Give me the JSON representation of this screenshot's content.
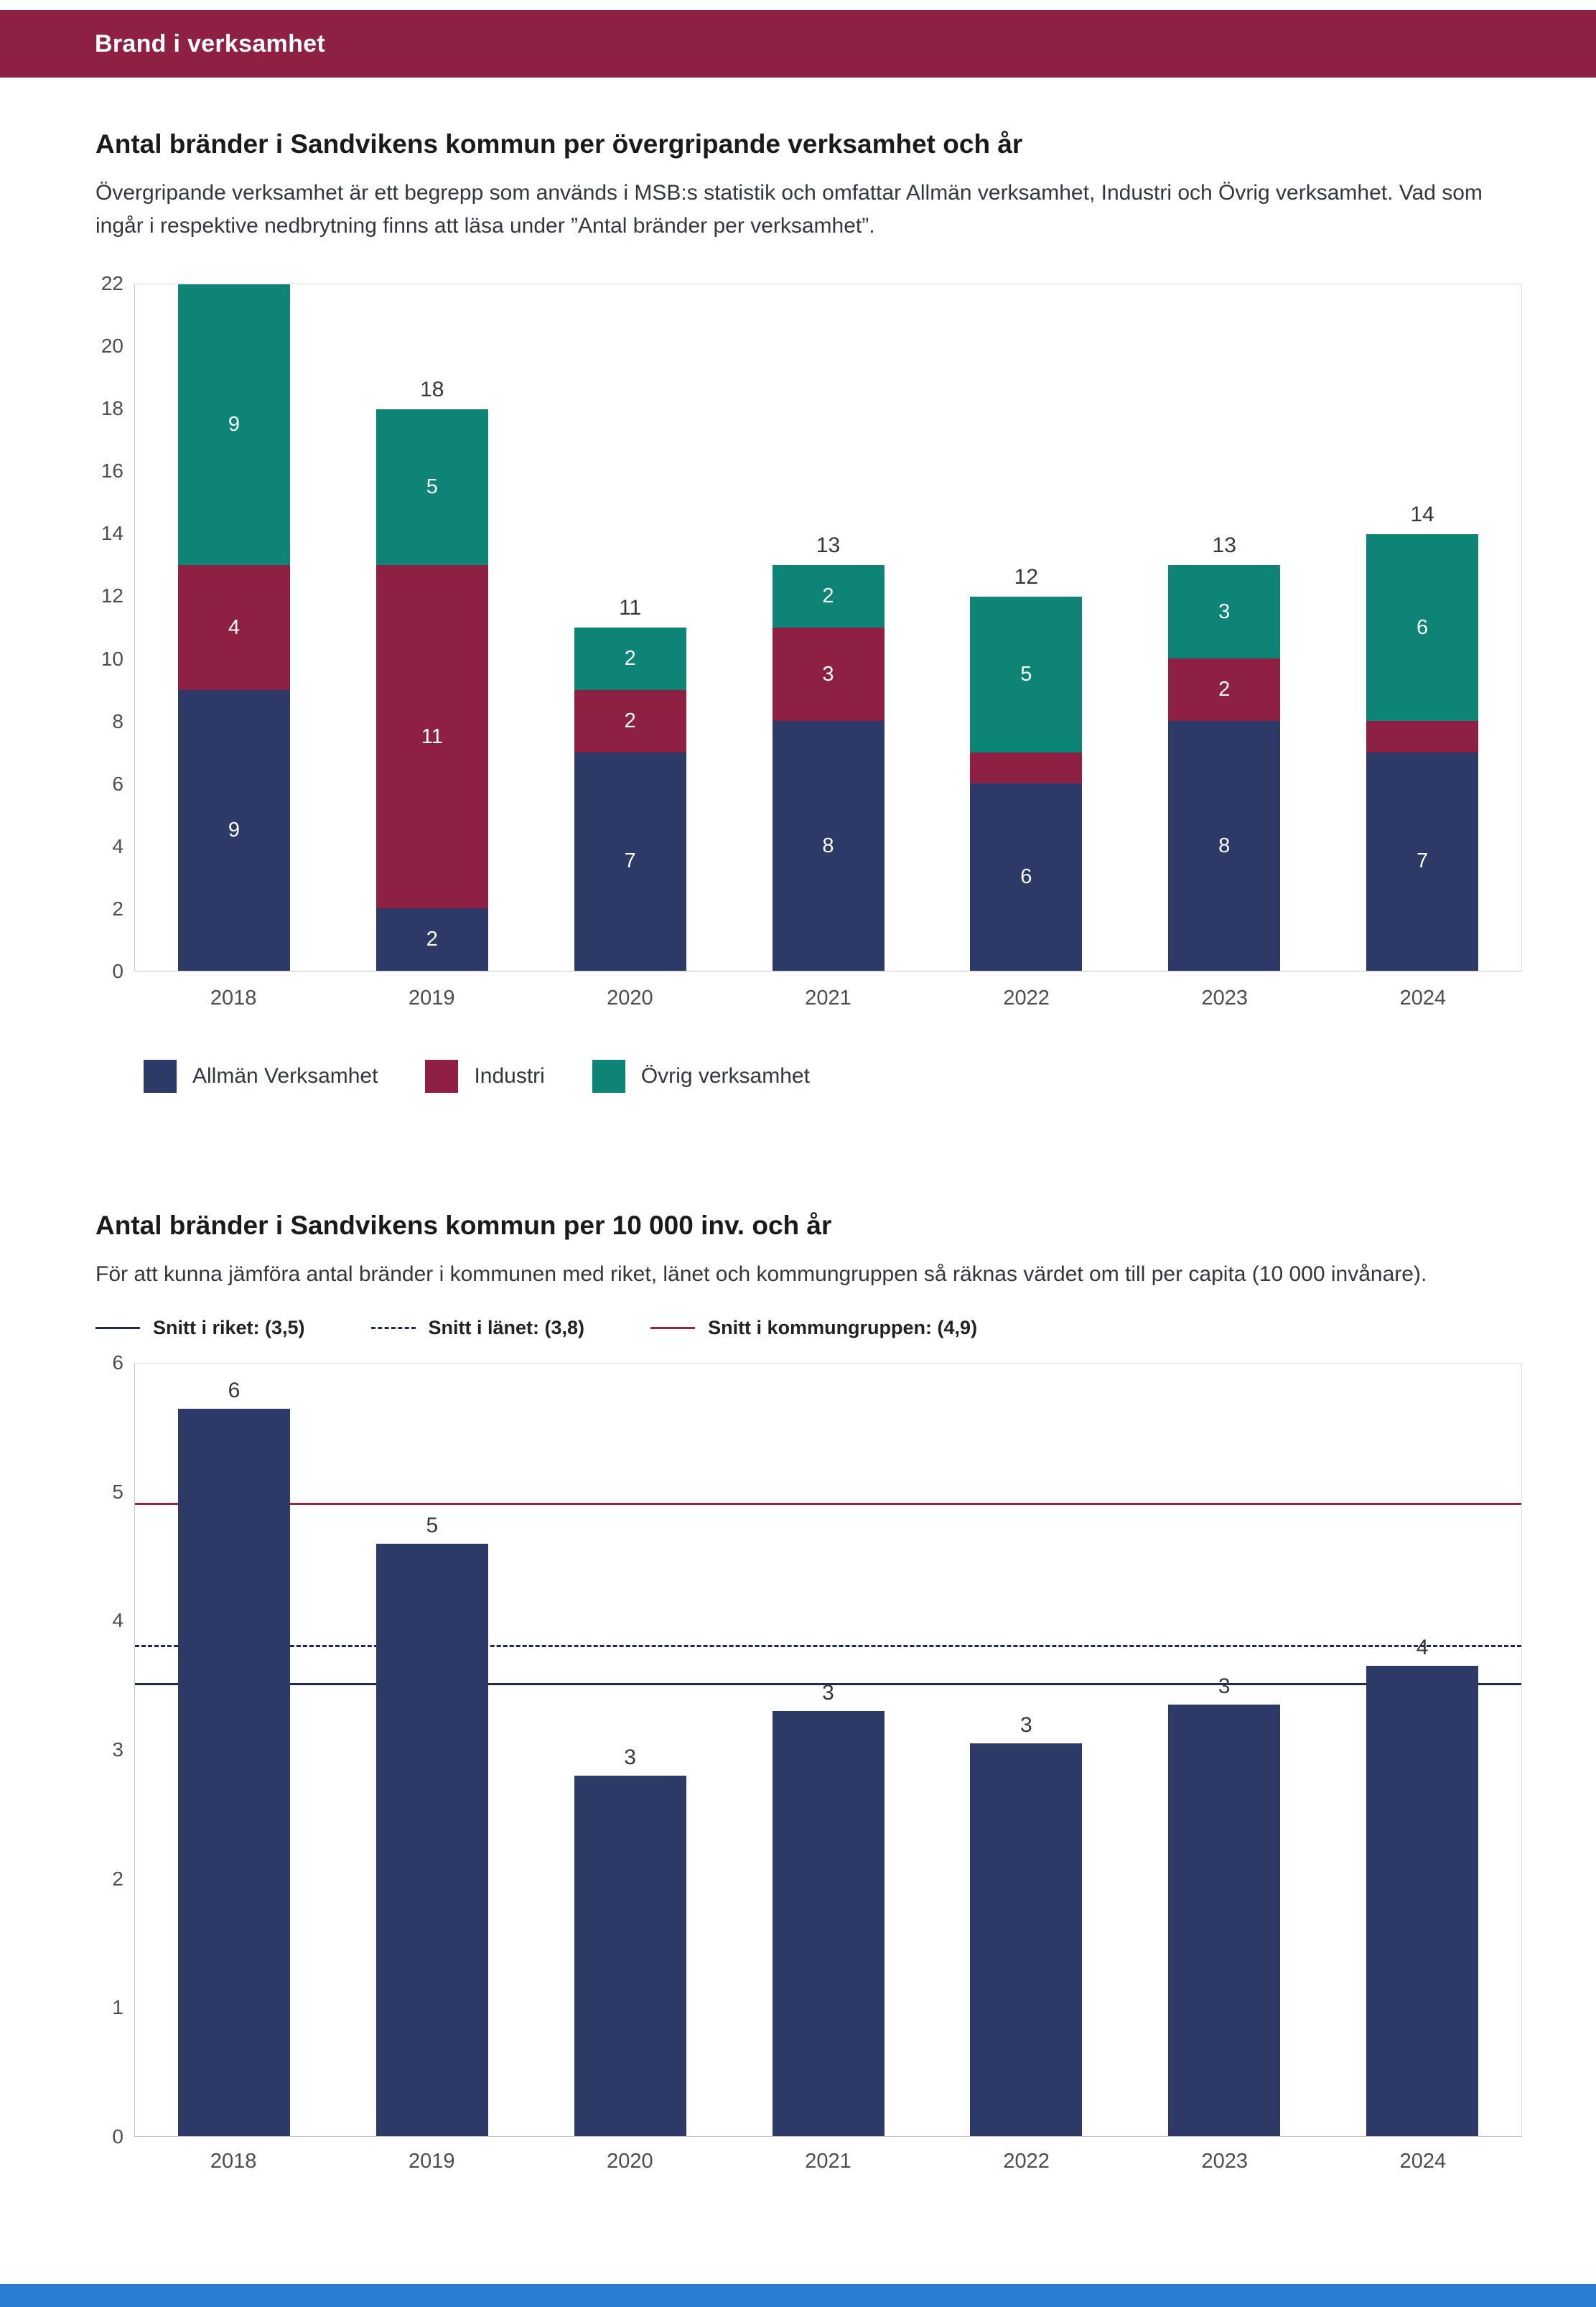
{
  "page": {
    "background": "#ffffff",
    "footer_accent_color": "#2b7cd3"
  },
  "header": {
    "title": "Brand i verksamhet",
    "background": "#8e2044"
  },
  "sections": [
    {
      "title": "Antal bränder i Sandvikens kommun per övergripande verksamhet och år",
      "description": "Övergripande verksamhet är ett begrepp som används i MSB:s statistik och omfattar Allmän verksamhet, Industri och Övrig verksamhet. Vad som ingår i respektive nedbrytning finns att läsa under ”Antal bränder per verksamhet”."
    },
    {
      "title": "Antal bränder i Sandvikens kommun per 10 000 inv. och år",
      "description": "För att kunna jämföra antal bränder i kommunen med riket, länet och kommungruppen så räknas värdet om till per capita (10 000 invånare)."
    }
  ],
  "chart_data": [
    {
      "type": "bar",
      "stacked": true,
      "title": "Antal bränder i Sandvikens kommun per övergripande verksamhet och år",
      "categories": [
        "2018",
        "2019",
        "2020",
        "2021",
        "2022",
        "2023",
        "2024"
      ],
      "series": [
        {
          "name": "Allmän Verksamhet",
          "color": "#2d3a68",
          "values": [
            9,
            2,
            7,
            8,
            6,
            8,
            7
          ]
        },
        {
          "name": "Industri",
          "color": "#8e2044",
          "values": [
            4,
            11,
            2,
            3,
            1,
            2,
            1
          ]
        },
        {
          "name": "Övrig verksamhet",
          "color": "#0e8477",
          "values": [
            9,
            5,
            2,
            2,
            5,
            3,
            6
          ]
        }
      ],
      "totals": [
        22,
        18,
        11,
        13,
        12,
        13,
        14
      ],
      "total_labels": [
        "",
        "18",
        "11",
        "13",
        "12",
        "13",
        "14"
      ],
      "xlabel": "",
      "ylabel": "",
      "ylim": [
        0,
        22
      ],
      "ytick_step": 2,
      "grid": false,
      "legend_position": "bottom"
    },
    {
      "type": "bar",
      "title": "Antal bränder i Sandvikens kommun per 10 000 inv. och år",
      "categories": [
        "2018",
        "2019",
        "2020",
        "2021",
        "2022",
        "2023",
        "2024"
      ],
      "values": [
        5.65,
        4.6,
        2.8,
        3.3,
        3.05,
        3.35,
        3.65
      ],
      "bar_labels": [
        "6",
        "5",
        "3",
        "3",
        "3",
        "3",
        "4"
      ],
      "bar_color": "#2d3a68",
      "xlabel": "",
      "ylabel": "",
      "ylim": [
        0,
        6
      ],
      "ytick_step": 1,
      "grid": false,
      "legend_position": "top",
      "reference_lines": [
        {
          "label": "Snitt i riket: (3,5)",
          "value": 3.5,
          "style": "solid",
          "color": "#1f2a4d"
        },
        {
          "label": "Snitt i länet: (3,8)",
          "value": 3.8,
          "style": "dashed",
          "color": "#1f2a4d"
        },
        {
          "label": "Snitt i kommungruppen: (4,9)",
          "value": 4.9,
          "style": "solid",
          "color": "#9b2242"
        }
      ]
    }
  ]
}
